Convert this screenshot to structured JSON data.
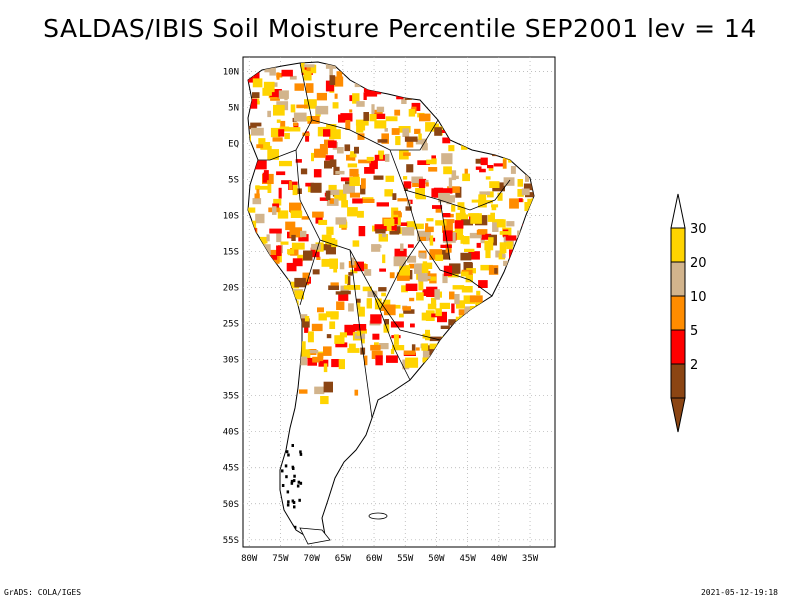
{
  "title": "SALDAS/IBIS Soil Moisture Percentile SEP2001 lev = 14",
  "footer": {
    "left": "GrADS: COLA/IGES",
    "right": "2021-05-12-19:18"
  },
  "map": {
    "region": "South America",
    "lon_range": [
      -81,
      -31
    ],
    "lat_range": [
      -56,
      12
    ],
    "lon_ticks": [
      "80W",
      "75W",
      "70W",
      "65W",
      "60W",
      "55W",
      "50W",
      "45W",
      "40W",
      "35W"
    ],
    "lat_ticks": [
      "10N",
      "5N",
      "EQ",
      "5S",
      "10S",
      "15S",
      "20S",
      "25S",
      "30S",
      "35S",
      "40S",
      "45S",
      "50S",
      "55S"
    ],
    "grid": "dotted"
  },
  "legend": {
    "items": [
      {
        "label": "30",
        "color": "#ffd400"
      },
      {
        "label": "20",
        "color": "#d2b48c"
      },
      {
        "label": "10",
        "color": "#ff8c00"
      },
      {
        "label": "5",
        "color": "#ff0000"
      },
      {
        "label": "2",
        "color": "#8b4513"
      }
    ],
    "top_color": "#ffffff",
    "bottom_color": "#8b4513"
  },
  "colors": {
    "frame": "#000000",
    "grid": "#aaaaaa",
    "coast": "#000000"
  }
}
